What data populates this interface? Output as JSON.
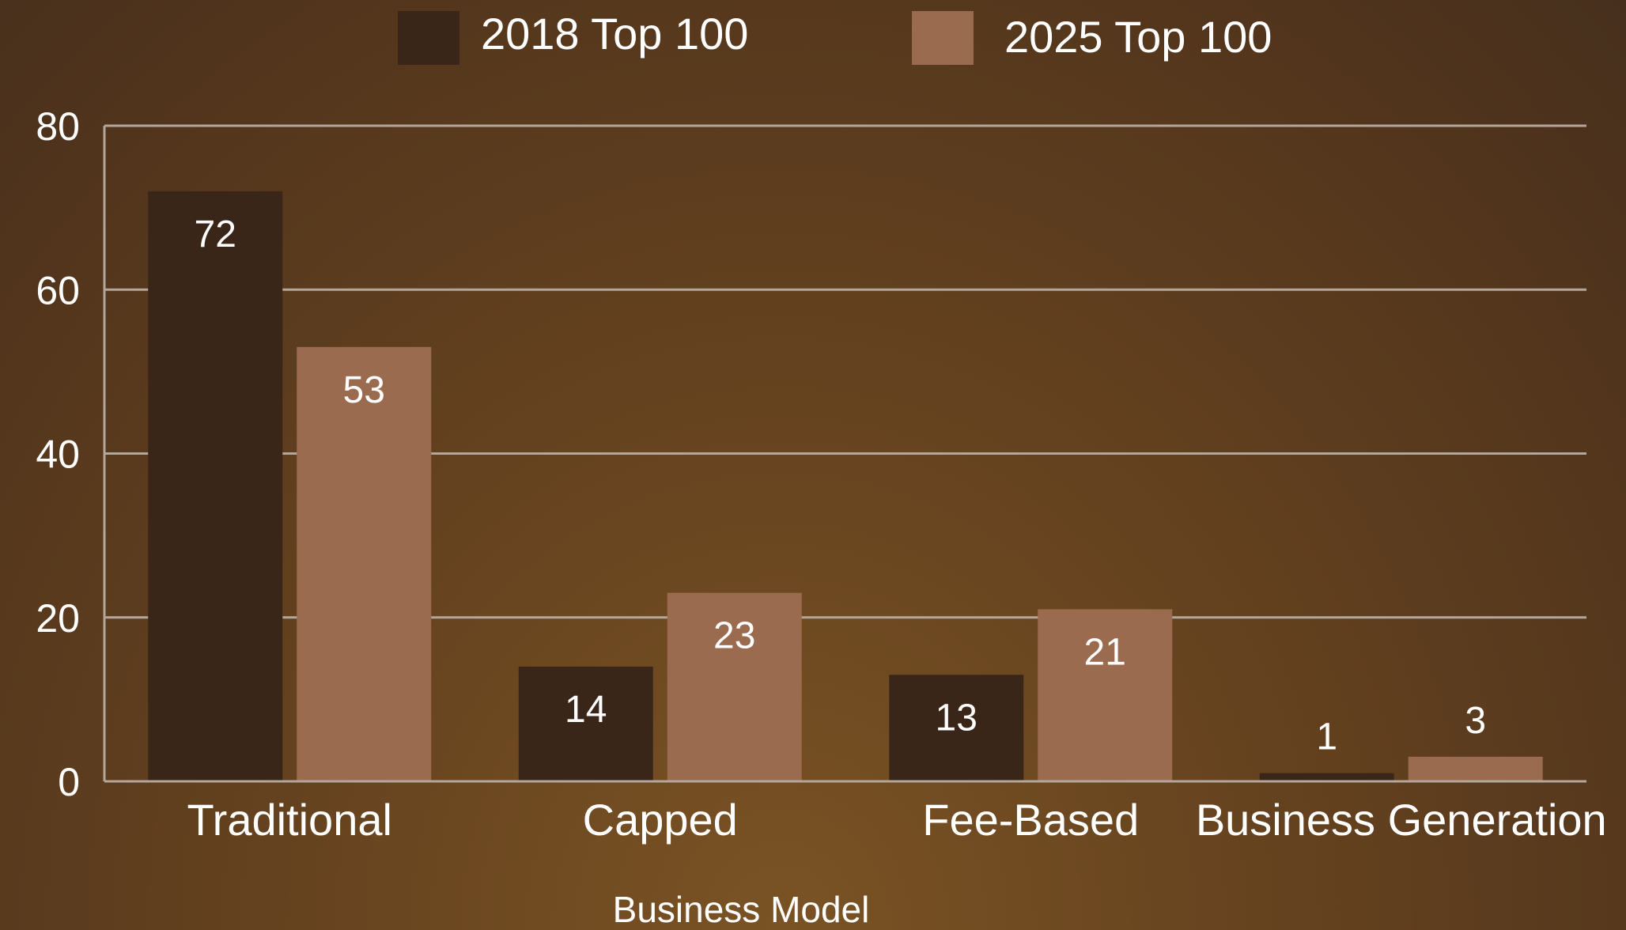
{
  "chart_data": {
    "type": "bar",
    "title": "",
    "xlabel": "Business Model",
    "ylabel": "",
    "categories": [
      "Traditional",
      "Capped",
      "Fee-Based",
      "Business Generation"
    ],
    "series": [
      {
        "name": "2018 Top 100",
        "values": [
          72,
          14,
          13,
          1
        ],
        "color": "#3a2619"
      },
      {
        "name": "2025 Top 100",
        "values": [
          53,
          23,
          21,
          3
        ],
        "color": "#9a6b4e"
      }
    ],
    "ylim": [
      0,
      80
    ],
    "yticks": [
      "0",
      "20",
      "40",
      "60",
      "80"
    ],
    "grid": true,
    "legend": "top-center",
    "data_labels": true
  },
  "colors": {
    "grid": "#b3a79c",
    "text": "#ffffff"
  }
}
